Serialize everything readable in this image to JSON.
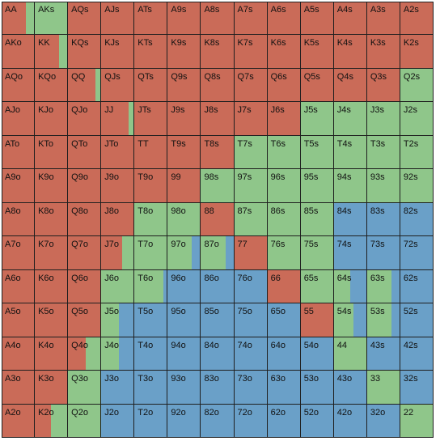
{
  "colors": {
    "raise": "#ca6b58",
    "call": "#8fc68a",
    "fold": "#6aa0c8"
  },
  "rows": [
    [
      [
        "AA",
        [
          0.75,
          0.25,
          0
        ]
      ],
      [
        "AKs",
        [
          0,
          1,
          0
        ]
      ],
      [
        "AQs",
        [
          1,
          0,
          0
        ]
      ],
      [
        "AJs",
        [
          1,
          0,
          0
        ]
      ],
      [
        "ATs",
        [
          1,
          0,
          0
        ]
      ],
      [
        "A9s",
        [
          1,
          0,
          0
        ]
      ],
      [
        "A8s",
        [
          1,
          0,
          0
        ]
      ],
      [
        "A7s",
        [
          1,
          0,
          0
        ]
      ],
      [
        "A6s",
        [
          1,
          0,
          0
        ]
      ],
      [
        "A5s",
        [
          1,
          0,
          0
        ]
      ],
      [
        "A4s",
        [
          1,
          0,
          0
        ]
      ],
      [
        "A3s",
        [
          1,
          0,
          0
        ]
      ],
      [
        "A2s",
        [
          1,
          0,
          0
        ]
      ]
    ],
    [
      [
        "AKo",
        [
          1,
          0,
          0
        ]
      ],
      [
        "KK",
        [
          0.75,
          0.25,
          0
        ]
      ],
      [
        "KQs",
        [
          1,
          0,
          0
        ]
      ],
      [
        "KJs",
        [
          1,
          0,
          0
        ]
      ],
      [
        "KTs",
        [
          1,
          0,
          0
        ]
      ],
      [
        "K9s",
        [
          1,
          0,
          0
        ]
      ],
      [
        "K8s",
        [
          1,
          0,
          0
        ]
      ],
      [
        "K7s",
        [
          1,
          0,
          0
        ]
      ],
      [
        "K6s",
        [
          1,
          0,
          0
        ]
      ],
      [
        "K5s",
        [
          1,
          0,
          0
        ]
      ],
      [
        "K4s",
        [
          1,
          0,
          0
        ]
      ],
      [
        "K3s",
        [
          1,
          0,
          0
        ]
      ],
      [
        "K2s",
        [
          1,
          0,
          0
        ]
      ]
    ],
    [
      [
        "AQo",
        [
          1,
          0,
          0
        ]
      ],
      [
        "KQo",
        [
          1,
          0,
          0
        ]
      ],
      [
        "QQ",
        [
          0.85,
          0.15,
          0
        ]
      ],
      [
        "QJs",
        [
          1,
          0,
          0
        ]
      ],
      [
        "QTs",
        [
          1,
          0,
          0
        ]
      ],
      [
        "Q9s",
        [
          1,
          0,
          0
        ]
      ],
      [
        "Q8s",
        [
          1,
          0,
          0
        ]
      ],
      [
        "Q7s",
        [
          1,
          0,
          0
        ]
      ],
      [
        "Q6s",
        [
          1,
          0,
          0
        ]
      ],
      [
        "Q5s",
        [
          1,
          0,
          0
        ]
      ],
      [
        "Q4s",
        [
          1,
          0,
          0
        ]
      ],
      [
        "Q3s",
        [
          1,
          0,
          0
        ]
      ],
      [
        "Q2s",
        [
          0,
          1,
          0
        ]
      ]
    ],
    [
      [
        "AJo",
        [
          1,
          0,
          0
        ]
      ],
      [
        "KJo",
        [
          1,
          0,
          0
        ]
      ],
      [
        "QJo",
        [
          1,
          0,
          0
        ]
      ],
      [
        "JJ",
        [
          0.85,
          0.15,
          0
        ]
      ],
      [
        "JTs",
        [
          1,
          0,
          0
        ]
      ],
      [
        "J9s",
        [
          1,
          0,
          0
        ]
      ],
      [
        "J8s",
        [
          1,
          0,
          0
        ]
      ],
      [
        "J7s",
        [
          1,
          0,
          0
        ]
      ],
      [
        "J6s",
        [
          1,
          0,
          0
        ]
      ],
      [
        "J5s",
        [
          0,
          1,
          0
        ]
      ],
      [
        "J4s",
        [
          0,
          1,
          0
        ]
      ],
      [
        "J3s",
        [
          0,
          1,
          0
        ]
      ],
      [
        "J2s",
        [
          0,
          1,
          0
        ]
      ]
    ],
    [
      [
        "ATo",
        [
          1,
          0,
          0
        ]
      ],
      [
        "KTo",
        [
          1,
          0,
          0
        ]
      ],
      [
        "QTo",
        [
          1,
          0,
          0
        ]
      ],
      [
        "JTo",
        [
          1,
          0,
          0
        ]
      ],
      [
        "TT",
        [
          1,
          0,
          0
        ]
      ],
      [
        "T9s",
        [
          1,
          0,
          0
        ]
      ],
      [
        "T8s",
        [
          1,
          0,
          0
        ]
      ],
      [
        "T7s",
        [
          0,
          1,
          0
        ]
      ],
      [
        "T6s",
        [
          0,
          1,
          0
        ]
      ],
      [
        "T5s",
        [
          0,
          1,
          0
        ]
      ],
      [
        "T4s",
        [
          0,
          1,
          0
        ]
      ],
      [
        "T3s",
        [
          0,
          1,
          0
        ]
      ],
      [
        "T2s",
        [
          0,
          1,
          0
        ]
      ]
    ],
    [
      [
        "A9o",
        [
          1,
          0,
          0
        ]
      ],
      [
        "K9o",
        [
          1,
          0,
          0
        ]
      ],
      [
        "Q9o",
        [
          1,
          0,
          0
        ]
      ],
      [
        "J9o",
        [
          1,
          0,
          0
        ]
      ],
      [
        "T9o",
        [
          1,
          0,
          0
        ]
      ],
      [
        "99",
        [
          1,
          0,
          0
        ]
      ],
      [
        "98s",
        [
          0,
          1,
          0
        ]
      ],
      [
        "97s",
        [
          0,
          1,
          0
        ]
      ],
      [
        "96s",
        [
          0,
          1,
          0
        ]
      ],
      [
        "95s",
        [
          0,
          1,
          0
        ]
      ],
      [
        "94s",
        [
          0,
          1,
          0
        ]
      ],
      [
        "93s",
        [
          0,
          1,
          0
        ]
      ],
      [
        "92s",
        [
          0,
          1,
          0
        ]
      ]
    ],
    [
      [
        "A8o",
        [
          1,
          0,
          0
        ]
      ],
      [
        "K8o",
        [
          1,
          0,
          0
        ]
      ],
      [
        "Q8o",
        [
          1,
          0,
          0
        ]
      ],
      [
        "J8o",
        [
          1,
          0,
          0
        ]
      ],
      [
        "T8o",
        [
          0,
          1,
          0
        ]
      ],
      [
        "98o",
        [
          0,
          1,
          0
        ]
      ],
      [
        "88",
        [
          1,
          0,
          0
        ]
      ],
      [
        "87s",
        [
          0,
          1,
          0
        ]
      ],
      [
        "86s",
        [
          0,
          1,
          0
        ]
      ],
      [
        "85s",
        [
          0,
          1,
          0
        ]
      ],
      [
        "84s",
        [
          0,
          0,
          1
        ]
      ],
      [
        "83s",
        [
          0,
          0,
          1
        ]
      ],
      [
        "82s",
        [
          0,
          0,
          1
        ]
      ]
    ],
    [
      [
        "A7o",
        [
          1,
          0,
          0
        ]
      ],
      [
        "K7o",
        [
          1,
          0,
          0
        ]
      ],
      [
        "Q7o",
        [
          1,
          0,
          0
        ]
      ],
      [
        "J7o",
        [
          0.65,
          0.35,
          0
        ]
      ],
      [
        "T7o",
        [
          0,
          1,
          0
        ]
      ],
      [
        "97o",
        [
          0,
          0.75,
          0.25
        ]
      ],
      [
        "87o",
        [
          0,
          0.75,
          0.25
        ]
      ],
      [
        "77",
        [
          1,
          0,
          0
        ]
      ],
      [
        "76s",
        [
          0,
          1,
          0
        ]
      ],
      [
        "75s",
        [
          0,
          1,
          0
        ]
      ],
      [
        "74s",
        [
          0,
          0,
          1
        ]
      ],
      [
        "73s",
        [
          0,
          0,
          1
        ]
      ],
      [
        "72s",
        [
          0,
          0,
          1
        ]
      ]
    ],
    [
      [
        "A6o",
        [
          1,
          0,
          0
        ]
      ],
      [
        "K6o",
        [
          1,
          0,
          0
        ]
      ],
      [
        "Q6o",
        [
          1,
          0,
          0
        ]
      ],
      [
        "J6o",
        [
          0,
          1,
          0
        ]
      ],
      [
        "T6o",
        [
          0,
          0.9,
          0.1
        ]
      ],
      [
        "96o",
        [
          0,
          0,
          1
        ]
      ],
      [
        "86o",
        [
          0,
          0,
          1
        ]
      ],
      [
        "76o",
        [
          0,
          0,
          1
        ]
      ],
      [
        "66",
        [
          1,
          0,
          0
        ]
      ],
      [
        "65s",
        [
          0,
          1,
          0
        ]
      ],
      [
        "64s",
        [
          0,
          0.5,
          0.5
        ]
      ],
      [
        "63s",
        [
          0,
          0.75,
          0.25
        ]
      ],
      [
        "62s",
        [
          0,
          0,
          1
        ]
      ]
    ],
    [
      [
        "A5o",
        [
          1,
          0,
          0
        ]
      ],
      [
        "K5o",
        [
          1,
          0,
          0
        ]
      ],
      [
        "Q5o",
        [
          1,
          0,
          0
        ]
      ],
      [
        "J5o",
        [
          0,
          0.55,
          0.45
        ]
      ],
      [
        "T5o",
        [
          0,
          0,
          1
        ]
      ],
      [
        "95o",
        [
          0,
          0,
          1
        ]
      ],
      [
        "85o",
        [
          0,
          0,
          1
        ]
      ],
      [
        "75o",
        [
          0,
          0,
          1
        ]
      ],
      [
        "65o",
        [
          0,
          0,
          1
        ]
      ],
      [
        "55",
        [
          1,
          0,
          0
        ]
      ],
      [
        "54s",
        [
          0,
          0.6,
          0.4
        ]
      ],
      [
        "53s",
        [
          0,
          0.75,
          0.25
        ]
      ],
      [
        "52s",
        [
          0,
          0,
          1
        ]
      ]
    ],
    [
      [
        "A4o",
        [
          1,
          0,
          0
        ]
      ],
      [
        "K4o",
        [
          1,
          0,
          0
        ]
      ],
      [
        "Q4o",
        [
          0.55,
          0.45,
          0
        ]
      ],
      [
        "J4o",
        [
          0,
          0.55,
          0.45
        ]
      ],
      [
        "T4o",
        [
          0,
          0,
          1
        ]
      ],
      [
        "94o",
        [
          0,
          0,
          1
        ]
      ],
      [
        "84o",
        [
          0,
          0,
          1
        ]
      ],
      [
        "74o",
        [
          0,
          0,
          1
        ]
      ],
      [
        "64o",
        [
          0,
          0,
          1
        ]
      ],
      [
        "54o",
        [
          0,
          0,
          1
        ]
      ],
      [
        "44",
        [
          0,
          1,
          0
        ]
      ],
      [
        "43s",
        [
          0,
          0,
          1
        ]
      ],
      [
        "42s",
        [
          0,
          0,
          1
        ]
      ]
    ],
    [
      [
        "A3o",
        [
          1,
          0,
          0
        ]
      ],
      [
        "K3o",
        [
          1,
          0,
          0
        ]
      ],
      [
        "Q3o",
        [
          0,
          1,
          0
        ]
      ],
      [
        "J3o",
        [
          0,
          0,
          1
        ]
      ],
      [
        "T3o",
        [
          0,
          0,
          1
        ]
      ],
      [
        "93o",
        [
          0,
          0,
          1
        ]
      ],
      [
        "83o",
        [
          0,
          0,
          1
        ]
      ],
      [
        "73o",
        [
          0,
          0,
          1
        ]
      ],
      [
        "63o",
        [
          0,
          0,
          1
        ]
      ],
      [
        "53o",
        [
          0,
          0,
          1
        ]
      ],
      [
        "43o",
        [
          0,
          0,
          1
        ]
      ],
      [
        "33",
        [
          0,
          1,
          0
        ]
      ],
      [
        "32s",
        [
          0,
          0,
          1
        ]
      ]
    ],
    [
      [
        "A2o",
        [
          1,
          0,
          0
        ]
      ],
      [
        "K2o",
        [
          0.5,
          0.5,
          0
        ]
      ],
      [
        "Q2o",
        [
          0,
          1,
          0
        ]
      ],
      [
        "J2o",
        [
          0,
          0,
          1
        ]
      ],
      [
        "T2o",
        [
          0,
          0,
          1
        ]
      ],
      [
        "92o",
        [
          0,
          0,
          1
        ]
      ],
      [
        "82o",
        [
          0,
          0,
          1
        ]
      ],
      [
        "72o",
        [
          0,
          0,
          1
        ]
      ],
      [
        "62o",
        [
          0,
          0,
          1
        ]
      ],
      [
        "52o",
        [
          0,
          0,
          1
        ]
      ],
      [
        "42o",
        [
          0,
          0,
          1
        ]
      ],
      [
        "32o",
        [
          0,
          0,
          1
        ]
      ],
      [
        "22",
        [
          0,
          1,
          0
        ]
      ]
    ]
  ]
}
